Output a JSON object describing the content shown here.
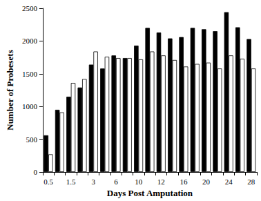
{
  "chart_data": {
    "type": "bar",
    "x_label": "Days Post Amputation",
    "y_label": "Number of Probesets",
    "categories": [
      "0.5",
      null,
      "1.5",
      null,
      "3",
      null,
      "6",
      null,
      "10",
      null,
      "12",
      null,
      "16",
      null,
      "20",
      null,
      "24",
      null,
      "28"
    ],
    "series": [
      {
        "color": "#000000",
        "values": [
          560,
          950,
          1150,
          1290,
          1640,
          1580,
          1780,
          1740,
          1930,
          2200,
          2130,
          2040,
          2060,
          2200,
          2180,
          2150,
          2440,
          2210,
          2030
        ]
      },
      {
        "color": "#ffffff",
        "values": [
          270,
          910,
          1360,
          1420,
          1840,
          1760,
          1740,
          1740,
          1720,
          1840,
          1780,
          1710,
          1610,
          1650,
          1670,
          1580,
          1780,
          1730,
          1580
        ]
      }
    ],
    "ylim": [
      0,
      2500
    ],
    "yticks": [
      0,
      500,
      1000,
      1500,
      2000,
      2500
    ],
    "grid": false
  }
}
